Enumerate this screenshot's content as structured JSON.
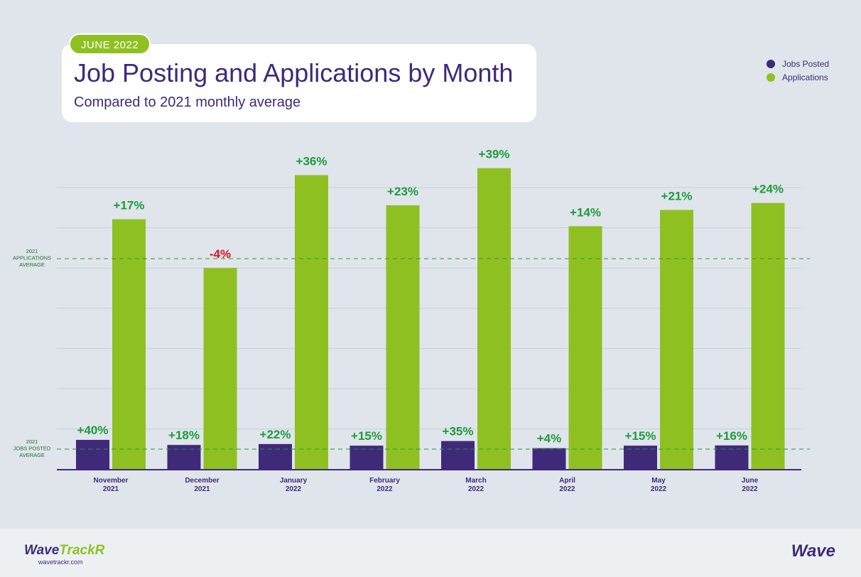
{
  "header": {
    "badge": "JUNE 2022",
    "title": "Job Posting and Applications by Month",
    "subtitle": "Compared to 2021 monthly average"
  },
  "legend": [
    {
      "label": "Jobs Posted",
      "color": "#3f2a7a"
    },
    {
      "label": "Applications",
      "color": "#8fc022"
    }
  ],
  "reference_lines": {
    "applications_average": [
      "2021",
      "APPLICATIONS",
      "AVERAGE"
    ],
    "jobs_posted_average": [
      "2021",
      "JOBS POSTED",
      "AVERAGE"
    ]
  },
  "chart_data": {
    "type": "bar",
    "categories": [
      [
        "November",
        "2021"
      ],
      [
        "December",
        "2021"
      ],
      [
        "January",
        "2022"
      ],
      [
        "February",
        "2022"
      ],
      [
        "March",
        "2022"
      ],
      [
        "April",
        "2022"
      ],
      [
        "May",
        "2022"
      ],
      [
        "June",
        "2022"
      ]
    ],
    "series": [
      {
        "name": "Jobs Posted",
        "color": "#3f2a7a",
        "values": [
          40,
          18,
          22,
          15,
          35,
          4,
          15,
          16
        ],
        "labels": [
          "+40%",
          "+18%",
          "+22%",
          "+15%",
          "+35%",
          "+4%",
          "+15%",
          "+16%"
        ]
      },
      {
        "name": "Applications",
        "color": "#8fc022",
        "values": [
          17,
          -4,
          36,
          23,
          39,
          14,
          21,
          24
        ],
        "labels": [
          "+17%",
          "-4%",
          "+36%",
          "+23%",
          "+39%",
          "+14%",
          "+21%",
          "+24%"
        ]
      }
    ],
    "positive_label_color": "#1f9b3c",
    "negative_label_color": "#e3101e",
    "grid": true,
    "legend_position": "top-right"
  },
  "footer": {
    "brand_left": "WaveTrackR",
    "brand_left_main": "Wave",
    "brand_left_accent": "TrackR",
    "url": "wavetrackr.com",
    "brand_right": "Wave"
  }
}
